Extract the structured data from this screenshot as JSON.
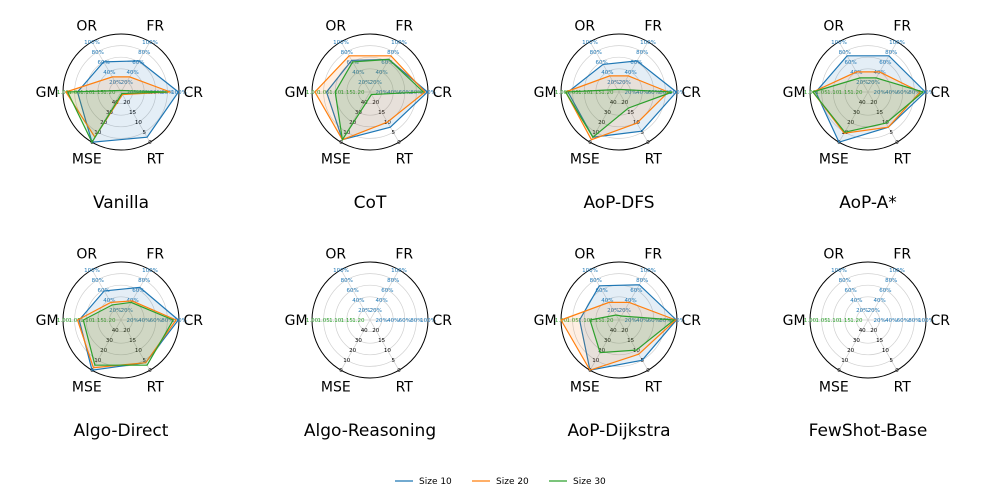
{
  "chart_data": {
    "type": "radar",
    "axes": [
      "CR",
      "FR",
      "OR",
      "GM",
      "MSE",
      "RT"
    ],
    "axis_ticks": {
      "FR": [
        "20%",
        "40%",
        "60%",
        "80%",
        "100%"
      ],
      "OR": [
        "20%",
        "40%",
        "60%",
        "80%",
        "100%"
      ],
      "CR": [
        "20%",
        "40%",
        "60%",
        "80%",
        "100%"
      ],
      "GM": [
        "1.20",
        "1.15",
        "1.10",
        "1.05",
        "1.00"
      ],
      "MSE": [
        "40",
        "30",
        "20",
        "10",
        "0"
      ],
      "RT": [
        "20",
        "15",
        "10",
        "5",
        "0"
      ]
    },
    "legend": [
      "Size 10",
      "Size 20",
      "Size 30"
    ],
    "legend_position": "bottom-center",
    "colors": [
      "#1f77b4",
      "#ff7f0e",
      "#2ca02c"
    ],
    "panels": [
      {
        "title": "Vanilla",
        "series": [
          {
            "name": "Size 10",
            "values": [
              0.99,
              0.62,
              0.6,
              0.75,
              1.0,
              0.9
            ]
          },
          {
            "name": "Size 20",
            "values": [
              0.85,
              0.3,
              0.3,
              0.95,
              0.9,
              0.05
            ]
          },
          {
            "name": "Size 30",
            "values": [
              0.8,
              0.03,
              0.03,
              0.92,
              1.0,
              0.03
            ]
          }
        ]
      },
      {
        "title": "CoT",
        "series": [
          {
            "name": "Size 10",
            "values": [
              0.99,
              0.65,
              0.63,
              0.75,
              0.95,
              0.7
            ]
          },
          {
            "name": "Size 20",
            "values": [
              0.95,
              0.72,
              0.72,
              0.95,
              0.95,
              0.6
            ]
          },
          {
            "name": "Size 30",
            "values": [
              0.92,
              0.65,
              0.6,
              0.6,
              0.95,
              0.05
            ]
          }
        ]
      },
      {
        "title": "AoP-DFS",
        "series": [
          {
            "name": "Size 10",
            "values": [
              0.99,
              0.62,
              0.55,
              0.88,
              0.9,
              0.78
            ]
          },
          {
            "name": "Size 20",
            "values": [
              0.85,
              0.32,
              0.32,
              0.92,
              0.95,
              0.62
            ]
          },
          {
            "name": "Size 30",
            "values": [
              0.92,
              0.05,
              0.05,
              0.92,
              0.9,
              0.32
            ]
          }
        ]
      },
      {
        "title": "AoP-A*",
        "series": [
          {
            "name": "Size 10",
            "values": [
              0.99,
              0.72,
              0.72,
              0.9,
              1.0,
              0.7
            ]
          },
          {
            "name": "Size 20",
            "values": [
              0.9,
              0.4,
              0.4,
              0.95,
              0.82,
              0.7
            ]
          },
          {
            "name": "Size 30",
            "values": [
              0.95,
              0.28,
              0.28,
              0.95,
              0.8,
              0.62
            ]
          }
        ]
      },
      {
        "title": "Algo-Direct",
        "series": [
          {
            "name": "Size 10",
            "values": [
              0.99,
              0.65,
              0.58,
              0.72,
              1.0,
              0.85
            ]
          },
          {
            "name": "Size 20",
            "values": [
              0.95,
              0.38,
              0.35,
              0.75,
              0.95,
              0.85
            ]
          },
          {
            "name": "Size 30",
            "values": [
              0.9,
              0.35,
              0.3,
              0.65,
              0.9,
              0.9
            ]
          }
        ]
      },
      {
        "title": "Algo-Reasoning",
        "series": []
      },
      {
        "title": "AoP-Dijkstra",
        "series": [
          {
            "name": "Size 10",
            "values": [
              0.99,
              0.7,
              0.68,
              0.68,
              1.0,
              0.8
            ]
          },
          {
            "name": "Size 20",
            "values": [
              0.98,
              0.35,
              0.35,
              1.0,
              1.0,
              0.68
            ]
          },
          {
            "name": "Size 30",
            "values": [
              0.95,
              0.08,
              0.1,
              0.5,
              0.65,
              0.6
            ]
          }
        ]
      },
      {
        "title": "FewShot-Base",
        "series": []
      }
    ]
  }
}
